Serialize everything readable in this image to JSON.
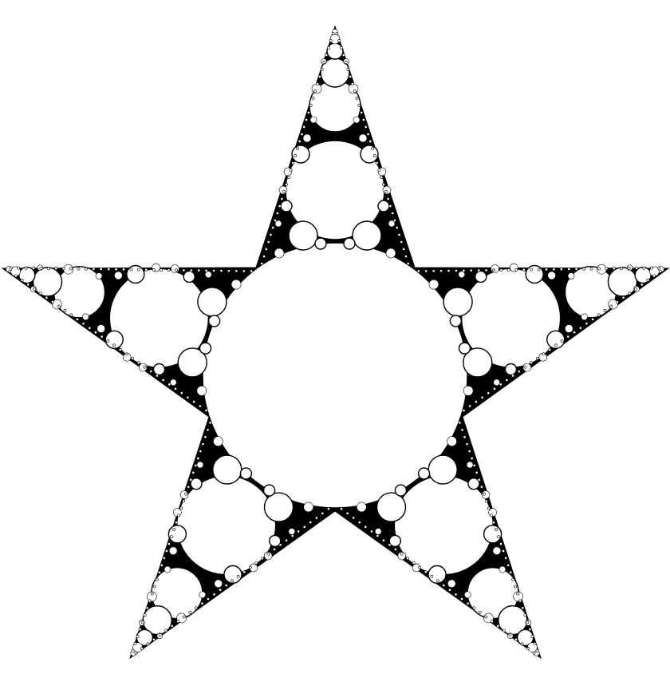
{
  "figure": {
    "subject": "star-apollonian-circle-packing",
    "colors": {
      "background": "#ffffff",
      "fill": "#000000",
      "circle": "#ffffff",
      "stroke": "#000000"
    }
  }
}
